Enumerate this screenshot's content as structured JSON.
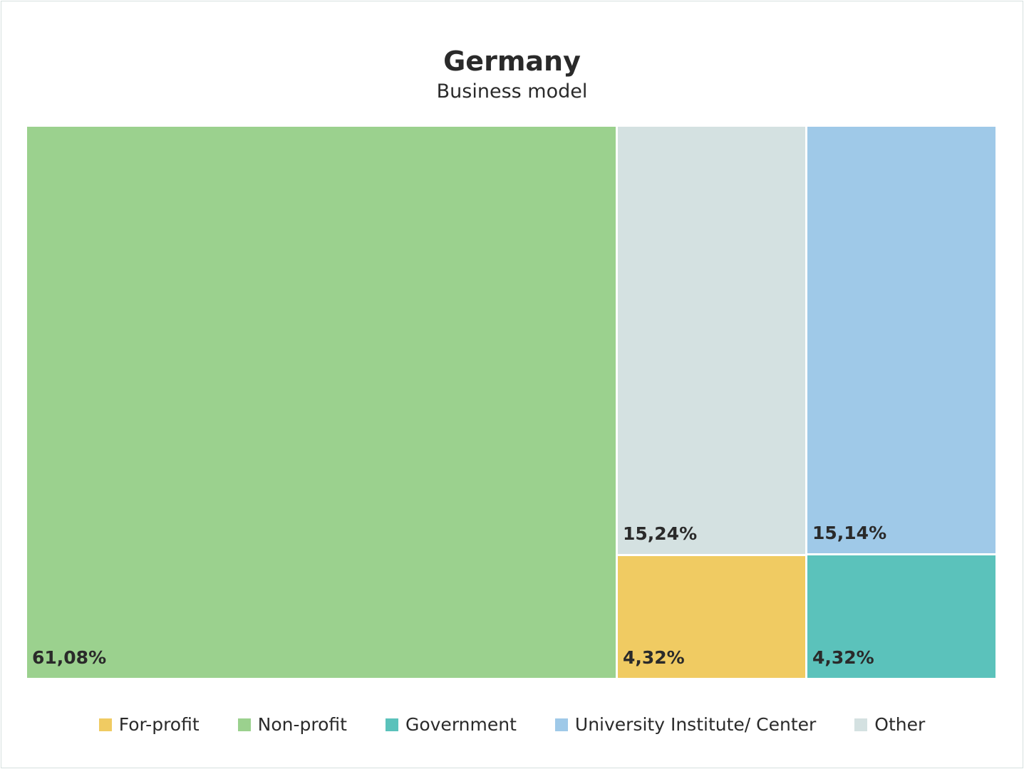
{
  "chart_data": {
    "type": "treemap",
    "title": "Germany",
    "subtitle": "Business model",
    "items": [
      {
        "name": "Non-profit",
        "value": 61.08,
        "label": "61,08%",
        "color": "#9bd18e"
      },
      {
        "name": "Other",
        "value": 15.24,
        "label": "15,24%",
        "color": "#d4e1e1"
      },
      {
        "name": "For-profit",
        "value": 4.32,
        "label": "4,32%",
        "color": "#f0cb62"
      },
      {
        "name": "University Institute/ Center",
        "value": 15.14,
        "label": "15,14%",
        "color": "#9fc9e8"
      },
      {
        "name": "Government",
        "value": 4.32,
        "label": "4,32%",
        "color": "#5bc2bb"
      }
    ],
    "legend": [
      {
        "name": "For-profit",
        "color": "#f0cb62"
      },
      {
        "name": "Non-profit",
        "color": "#9bd18e"
      },
      {
        "name": "Government",
        "color": "#5bc2bb"
      },
      {
        "name": "University Institute/ Center",
        "color": "#9fc9e8"
      },
      {
        "name": "Other",
        "color": "#d4e1e1"
      }
    ],
    "legend_position": "bottom"
  }
}
